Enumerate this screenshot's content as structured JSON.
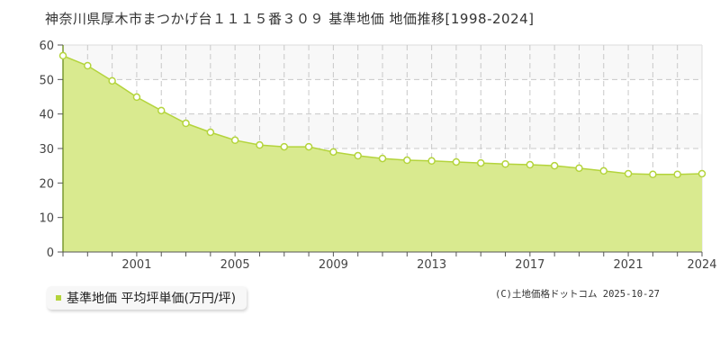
{
  "header": {
    "title": "神奈川県厚木市まつかげ台１１１５番３０９ 基準地価 地価推移[1998-2024]"
  },
  "legend": {
    "label": "基準地価 平均坪単価(万円/坪)",
    "color": "#b4d43c"
  },
  "credit": "(C)土地価格ドットコム 2025-10-27",
  "colors": {
    "line": "#b4d43c",
    "fill": "#d9ea8f",
    "marker_fill": "#ffffff",
    "grid": "#c8c8c8",
    "band": "#f8f8f8",
    "axis": "#555555"
  },
  "chart_data": {
    "type": "area",
    "title": "神奈川県厚木市まつかげ台１１１５番３０９ 基準地価 地価推移[1998-2024]",
    "xlabel": "",
    "ylabel": "",
    "x": [
      1998,
      1999,
      2000,
      2001,
      2002,
      2003,
      2004,
      2005,
      2006,
      2007,
      2008,
      2009,
      2010,
      2011,
      2012,
      2013,
      2014,
      2015,
      2016,
      2017,
      2018,
      2019,
      2020,
      2021,
      2022,
      2023,
      2024
    ],
    "series": [
      {
        "name": "基準地価 平均坪単価(万円/坪)",
        "values": [
          56.9,
          54.0,
          49.6,
          44.9,
          41.0,
          37.3,
          34.7,
          32.4,
          31.0,
          30.5,
          30.5,
          29.0,
          27.9,
          27.1,
          26.6,
          26.4,
          26.1,
          25.8,
          25.5,
          25.3,
          25.0,
          24.3,
          23.5,
          22.7,
          22.5,
          22.5,
          22.7
        ]
      }
    ],
    "xticks": [
      "2001",
      "2005",
      "2009",
      "2013",
      "2017",
      "2021",
      "2024"
    ],
    "yticks": [
      0,
      10,
      20,
      30,
      40,
      50,
      60
    ],
    "ylim": [
      0,
      60
    ],
    "xlim": [
      1998,
      2024
    ],
    "grid": true,
    "legend_position": "bottom-left"
  }
}
